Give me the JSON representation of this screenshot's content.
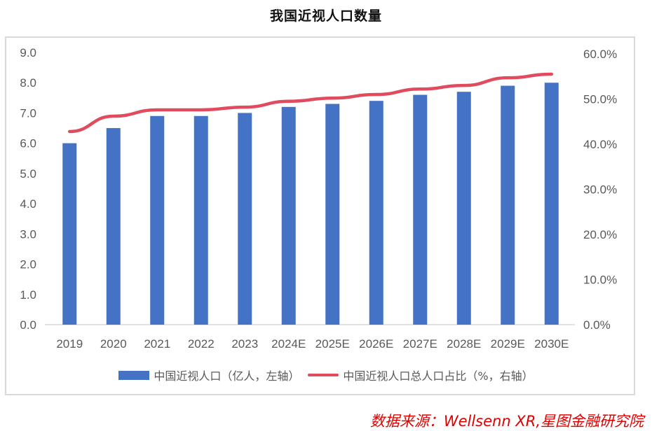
{
  "chart_data": {
    "type": "bar+line",
    "title": "我国近视人口数量",
    "categories": [
      "2019",
      "2020",
      "2021",
      "2022",
      "2023",
      "2024E",
      "2025E",
      "2026E",
      "2027E",
      "2028E",
      "2029E",
      "2030E"
    ],
    "series": [
      {
        "name": "中国近视人口（亿人，左轴）",
        "type": "bar",
        "axis": "left",
        "color": "#4472C4",
        "values": [
          6.0,
          6.5,
          6.9,
          6.9,
          7.0,
          7.2,
          7.3,
          7.4,
          7.6,
          7.7,
          7.9,
          8.0
        ]
      },
      {
        "name": "中国近视人口总人口占比（%，右轴）",
        "type": "line",
        "axis": "right",
        "color": "#E04B5E",
        "values": [
          42.8,
          46.2,
          47.6,
          47.6,
          48.2,
          49.5,
          50.2,
          51.0,
          52.2,
          53.0,
          54.7,
          55.5
        ]
      }
    ],
    "left_axis": {
      "min": 0,
      "max": 9,
      "ticks": [
        "0.0",
        "1.0",
        "2.0",
        "3.0",
        "4.0",
        "5.0",
        "6.0",
        "7.0",
        "8.0",
        "9.0"
      ]
    },
    "right_axis": {
      "min": 0,
      "max": 60,
      "ticks": [
        "0.0%",
        "10.0%",
        "20.0%",
        "30.0%",
        "40.0%",
        "50.0%",
        "60.0%"
      ]
    },
    "legend_position": "bottom",
    "grid": false
  },
  "legend": {
    "bar_label": "中国近视人口（亿人，左轴）",
    "line_label": "中国近视人口总人口占比（%，右轴）"
  },
  "source": "数据来源：Wellsenn XR,星图金融研究院"
}
